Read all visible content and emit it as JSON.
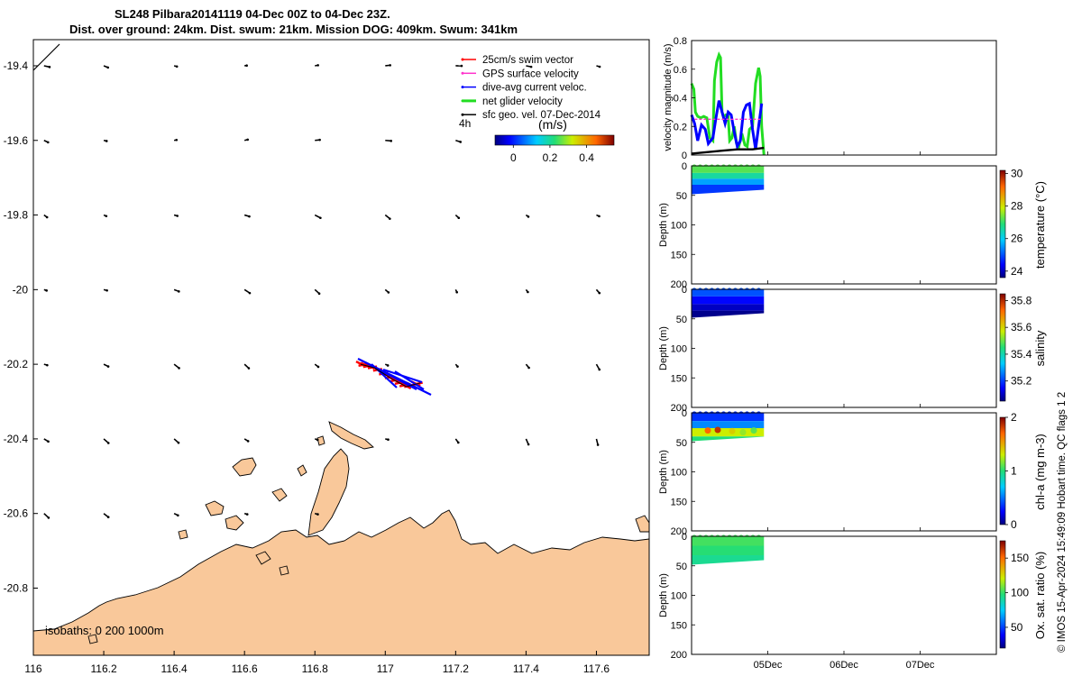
{
  "title_line1": "SL248 Pilbara20141119 04-Dec 00Z to 04-Dec 23Z.",
  "title_line2": "Dist. over ground: 24km. Dist. swum: 21km. Mission DOG: 409km. Swum: 341km",
  "side_note": "© IMOS 15-Apr-2024 15:49:09 Hobart time. QC flags 1  2",
  "isobaths_label": "isobaths: 0   200  1000m",
  "colors": {
    "land": "#f9c89a",
    "swim_vector": "#ff0000",
    "gps_velocity": "#ff33cc",
    "current": "#0000ff",
    "net_velocity": "#22dd22",
    "sfc_geo": "#000000"
  },
  "chart_data": [
    {
      "type": "map",
      "xlim": [
        116,
        117.75
      ],
      "ylim": [
        -20.98,
        -19.33
      ],
      "x_ticks": [
        116,
        116.2,
        116.4,
        116.6,
        116.8,
        117,
        117.2,
        117.4,
        117.6
      ],
      "x_tick_labels": [
        "116",
        "116.2",
        "116.4",
        "116.6",
        "116.8",
        "117",
        "117.2",
        "117.4",
        "117.6"
      ],
      "y_ticks": [
        -19.4,
        -19.6,
        -19.8,
        -20,
        -20.2,
        -20.4,
        -20.6,
        -20.8
      ],
      "y_tick_labels": [
        "-19.4",
        "-19.6",
        "-19.8",
        "-20",
        "-20.2",
        "-20.4",
        "-20.6",
        "-20.8"
      ],
      "legend": {
        "position": "top-right",
        "entries": [
          {
            "label": "25cm/s swim vector",
            "color": "#ff0000"
          },
          {
            "label": "GPS surface velocity",
            "color": "#ff33cc"
          },
          {
            "label": "dive-avg current veloc.",
            "color": "#0000ff"
          },
          {
            "label": "net glider velocity",
            "color": "#22dd22"
          },
          {
            "label": "sfc geo. vel. 07-Dec-2014",
            "color": "#000000"
          }
        ],
        "interval_label": "4h",
        "colorbar_title": "(m/s)",
        "colorbar_ticks": [
          "0",
          "0.2",
          "0.4"
        ],
        "colorbar_range": [
          -0.1,
          0.55
        ]
      },
      "geo_vector_grid": {
        "lons": [
          116.02,
          116.2,
          116.4,
          116.6,
          116.8,
          117.0,
          117.2,
          117.4,
          117.6
        ],
        "lats": [
          -19.4,
          -19.6,
          -19.8,
          -20.0,
          -20.2,
          -20.4,
          -20.6,
          -20.8
        ]
      },
      "glider_track": [
        {
          "lon": 116.93,
          "lat": -20.2
        },
        {
          "lon": 116.97,
          "lat": -20.21
        },
        {
          "lon": 117.02,
          "lat": -20.24
        },
        {
          "lon": 117.06,
          "lat": -20.26
        },
        {
          "lon": 117.1,
          "lat": -20.25
        }
      ]
    },
    {
      "type": "line",
      "ylabel": "velocity magnitude (m/s)",
      "ylim": [
        0,
        0.8
      ],
      "y_ticks": [
        0,
        0.2,
        0.4,
        0.6,
        0.8
      ],
      "y_tick_labels": [
        "0",
        "0.2",
        "0.4",
        "0.6",
        "0.8"
      ],
      "xlim": [
        0,
        4
      ],
      "x_ticks": [
        1,
        2,
        3
      ],
      "x_tick_labels": [
        "05Dec",
        "06Dec",
        "07Dec"
      ],
      "series": [
        {
          "color": "#22dd22",
          "x": [
            0,
            0.03,
            0.05,
            0.08,
            0.12,
            0.16,
            0.2,
            0.24,
            0.28,
            0.3,
            0.33,
            0.36,
            0.38,
            0.4,
            0.42,
            0.45,
            0.48,
            0.5,
            0.53,
            0.56,
            0.59,
            0.62,
            0.66,
            0.7,
            0.73,
            0.76,
            0.8,
            0.84,
            0.88,
            0.9,
            0.92,
            0.95
          ],
          "values": [
            0.5,
            0.46,
            0.3,
            0.27,
            0.26,
            0.27,
            0.26,
            0.12,
            0.1,
            0.52,
            0.65,
            0.7,
            0.68,
            0.3,
            0.27,
            0.28,
            0.27,
            0.1,
            0.12,
            0.2,
            0.08,
            0.06,
            0.15,
            0.07,
            0.06,
            0.18,
            0.2,
            0.5,
            0.61,
            0.55,
            0.2,
            0.0
          ]
        },
        {
          "color": "#0000ff",
          "x": [
            0,
            0.04,
            0.08,
            0.13,
            0.18,
            0.22,
            0.28,
            0.32,
            0.36,
            0.4,
            0.44,
            0.48,
            0.52,
            0.56,
            0.6,
            0.64,
            0.68,
            0.72,
            0.76,
            0.8,
            0.84,
            0.88,
            0.92
          ],
          "values": [
            0.28,
            0.22,
            0.1,
            0.21,
            0.18,
            0.08,
            0.12,
            0.26,
            0.38,
            0.3,
            0.22,
            0.3,
            0.28,
            0.16,
            0.06,
            0.1,
            0.3,
            0.35,
            0.36,
            0.18,
            0.04,
            0.2,
            0.36
          ]
        },
        {
          "color": "#ff33cc",
          "x": [
            0.04,
            0.92
          ],
          "values": [
            0.25,
            0.25
          ]
        },
        {
          "color": "#000000",
          "x": [
            0,
            0.2,
            0.4,
            0.6,
            0.8,
            0.95
          ],
          "values": [
            0.01,
            0.02,
            0.03,
            0.04,
            0.04,
            0.05
          ]
        }
      ]
    },
    {
      "type": "heatmap",
      "ylabel": "Depth (m)",
      "ylim": [
        200,
        0
      ],
      "y_ticks": [
        0,
        50,
        100,
        150,
        200
      ],
      "y_tick_labels": [
        "0",
        "50",
        "100",
        "150",
        "200"
      ],
      "xlim": [
        0,
        4
      ],
      "data_x_range": [
        0,
        0.95
      ],
      "clabel": "temperature (°C)",
      "crange": [
        23.6,
        30.2
      ],
      "cticks": [
        24,
        26,
        28,
        30
      ],
      "ctick_labels": [
        "24",
        "26",
        "28",
        "30"
      ],
      "layers": [
        {
          "depth_top": 0,
          "depth_bottom": 12,
          "value": 27.2
        },
        {
          "depth_top": 12,
          "depth_bottom": 22,
          "value": 26.6
        },
        {
          "depth_top": 22,
          "depth_bottom": 32,
          "value": 25.6
        },
        {
          "depth_top": 32,
          "depth_bottom": 48,
          "value": 24.8
        }
      ]
    },
    {
      "type": "heatmap",
      "ylabel": "Depth (m)",
      "ylim": [
        200,
        0
      ],
      "y_ticks": [
        0,
        50,
        100,
        150,
        200
      ],
      "y_tick_labels": [
        "0",
        "50",
        "100",
        "150",
        "200"
      ],
      "xlim": [
        0,
        4
      ],
      "data_x_range": [
        0,
        0.95
      ],
      "clabel": "salinity",
      "crange": [
        35.05,
        35.85
      ],
      "cticks": [
        35.2,
        35.4,
        35.6,
        35.8
      ],
      "ctick_labels": [
        "35.2",
        "35.4",
        "35.6",
        "35.8"
      ],
      "layers": [
        {
          "depth_top": 0,
          "depth_bottom": 12,
          "value": 35.22
        },
        {
          "depth_top": 12,
          "depth_bottom": 25,
          "value": 35.15
        },
        {
          "depth_top": 25,
          "depth_bottom": 36,
          "value": 35.1
        },
        {
          "depth_top": 36,
          "depth_bottom": 48,
          "value": 35.06
        }
      ]
    },
    {
      "type": "heatmap",
      "ylabel": "Depth (m)",
      "ylim": [
        200,
        0
      ],
      "y_ticks": [
        0,
        50,
        100,
        150,
        200
      ],
      "y_tick_labels": [
        "0",
        "50",
        "100",
        "150",
        "200"
      ],
      "xlim": [
        0,
        4
      ],
      "data_x_range": [
        0,
        0.95
      ],
      "clabel": "chl-a (mg m-3)",
      "crange": [
        0,
        2
      ],
      "cticks": [
        0,
        1,
        2
      ],
      "ctick_labels": [
        "0",
        "1",
        "2"
      ],
      "layers": [
        {
          "depth_top": 0,
          "depth_bottom": 14,
          "value": 0.35
        },
        {
          "depth_top": 14,
          "depth_bottom": 26,
          "value": 0.55
        },
        {
          "depth_top": 26,
          "depth_bottom": 40,
          "value": 1.3
        },
        {
          "depth_top": 40,
          "depth_bottom": 48,
          "value": 1.0
        }
      ]
    },
    {
      "type": "heatmap",
      "ylabel": "Depth (m)",
      "ylim": [
        200,
        0
      ],
      "y_ticks": [
        0,
        50,
        100,
        150,
        200
      ],
      "y_tick_labels": [
        "0",
        "50",
        "100",
        "150",
        "200"
      ],
      "xlim": [
        0,
        4
      ],
      "data_x_range": [
        0,
        0.95
      ],
      "clabel": "Ox. sat. ratio (%)",
      "crange": [
        20,
        175
      ],
      "cticks": [
        50,
        100,
        150
      ],
      "ctick_labels": [
        "50",
        "100",
        "150"
      ],
      "layers": [
        {
          "depth_top": 0,
          "depth_bottom": 16,
          "value": 102
        },
        {
          "depth_top": 16,
          "depth_bottom": 32,
          "value": 98
        },
        {
          "depth_top": 32,
          "depth_bottom": 48,
          "value": 93
        }
      ]
    }
  ]
}
